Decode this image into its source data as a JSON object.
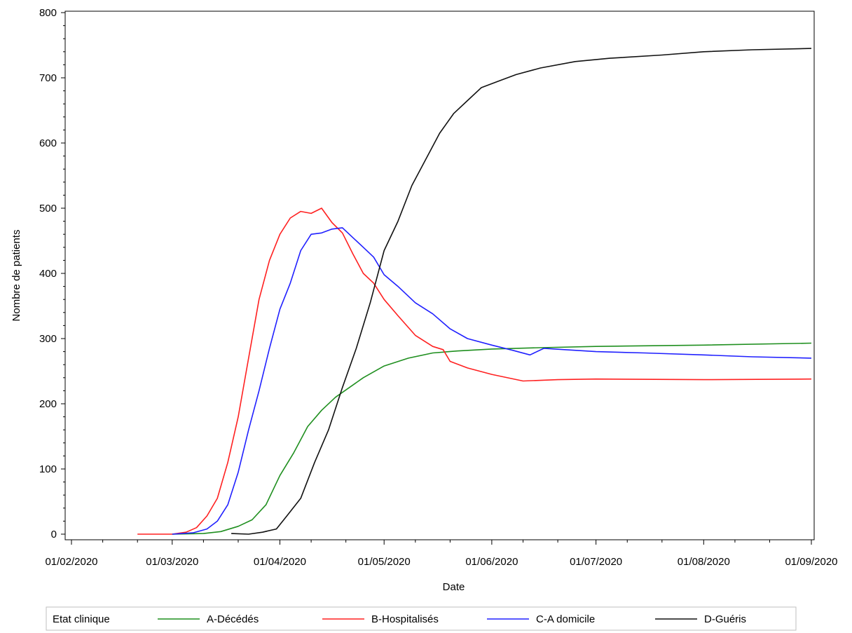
{
  "chart_data": {
    "type": "line",
    "xlabel": "Date",
    "ylabel": "Nombre de patients",
    "xlim": [
      "01/02/2020",
      "01/09/2020"
    ],
    "ylim": [
      0,
      800
    ],
    "x_ticks": [
      "01/02/2020",
      "01/03/2020",
      "01/04/2020",
      "01/05/2020",
      "01/06/2020",
      "01/07/2020",
      "01/08/2020",
      "01/09/2020"
    ],
    "y_ticks": [
      0,
      100,
      200,
      300,
      400,
      500,
      600,
      700,
      800
    ],
    "grid": false,
    "legend": {
      "title": "Etat clinique",
      "placement": "bottom"
    },
    "series": [
      {
        "name": "A-Décédés",
        "color": "#1f8f1f",
        "points": [
          [
            "01/03/2020",
            0
          ],
          [
            "10/03/2020",
            1
          ],
          [
            "15/03/2020",
            4
          ],
          [
            "20/03/2020",
            12
          ],
          [
            "24/03/2020",
            22
          ],
          [
            "28/03/2020",
            45
          ],
          [
            "01/04/2020",
            90
          ],
          [
            "05/04/2020",
            125
          ],
          [
            "09/04/2020",
            165
          ],
          [
            "13/04/2020",
            190
          ],
          [
            "17/04/2020",
            210
          ],
          [
            "21/04/2020",
            225
          ],
          [
            "25/04/2020",
            240
          ],
          [
            "01/05/2020",
            258
          ],
          [
            "08/05/2020",
            270
          ],
          [
            "15/05/2020",
            278
          ],
          [
            "22/05/2020",
            281
          ],
          [
            "01/06/2020",
            284
          ],
          [
            "15/06/2020",
            286
          ],
          [
            "01/07/2020",
            288
          ],
          [
            "01/08/2020",
            290
          ],
          [
            "01/09/2020",
            293
          ]
        ]
      },
      {
        "name": "B-Hospitalisés",
        "color": "#ff2020",
        "points": [
          [
            "20/02/2020",
            0
          ],
          [
            "01/03/2020",
            0
          ],
          [
            "05/03/2020",
            3
          ],
          [
            "08/03/2020",
            10
          ],
          [
            "11/03/2020",
            28
          ],
          [
            "14/03/2020",
            55
          ],
          [
            "17/03/2020",
            110
          ],
          [
            "20/03/2020",
            180
          ],
          [
            "23/03/2020",
            270
          ],
          [
            "26/03/2020",
            360
          ],
          [
            "29/03/2020",
            420
          ],
          [
            "01/04/2020",
            460
          ],
          [
            "04/04/2020",
            485
          ],
          [
            "07/04/2020",
            495
          ],
          [
            "10/04/2020",
            492
          ],
          [
            "13/04/2020",
            500
          ],
          [
            "16/04/2020",
            478
          ],
          [
            "19/04/2020",
            462
          ],
          [
            "22/04/2020",
            430
          ],
          [
            "25/04/2020",
            400
          ],
          [
            "28/04/2020",
            385
          ],
          [
            "01/05/2020",
            360
          ],
          [
            "05/05/2020",
            335
          ],
          [
            "10/05/2020",
            305
          ],
          [
            "15/05/2020",
            288
          ],
          [
            "18/05/2020",
            283
          ],
          [
            "20/05/2020",
            265
          ],
          [
            "25/05/2020",
            255
          ],
          [
            "01/06/2020",
            245
          ],
          [
            "10/06/2020",
            235
          ],
          [
            "20/06/2020",
            237
          ],
          [
            "01/07/2020",
            238
          ],
          [
            "01/08/2020",
            237
          ],
          [
            "01/09/2020",
            238
          ]
        ]
      },
      {
        "name": "C-A domicile",
        "color": "#2020ff",
        "points": [
          [
            "01/03/2020",
            0
          ],
          [
            "07/03/2020",
            2
          ],
          [
            "11/03/2020",
            8
          ],
          [
            "14/03/2020",
            20
          ],
          [
            "17/03/2020",
            45
          ],
          [
            "20/03/2020",
            95
          ],
          [
            "23/03/2020",
            160
          ],
          [
            "26/03/2020",
            220
          ],
          [
            "29/03/2020",
            285
          ],
          [
            "01/04/2020",
            345
          ],
          [
            "04/04/2020",
            385
          ],
          [
            "07/04/2020",
            435
          ],
          [
            "10/04/2020",
            460
          ],
          [
            "13/04/2020",
            462
          ],
          [
            "16/04/2020",
            468
          ],
          [
            "19/04/2020",
            470
          ],
          [
            "22/04/2020",
            455
          ],
          [
            "25/04/2020",
            440
          ],
          [
            "28/04/2020",
            425
          ],
          [
            "01/05/2020",
            398
          ],
          [
            "05/05/2020",
            380
          ],
          [
            "10/05/2020",
            355
          ],
          [
            "15/05/2020",
            338
          ],
          [
            "20/05/2020",
            315
          ],
          [
            "25/05/2020",
            300
          ],
          [
            "01/06/2020",
            290
          ],
          [
            "07/06/2020",
            282
          ],
          [
            "12/06/2020",
            275
          ],
          [
            "16/06/2020",
            285
          ],
          [
            "22/06/2020",
            283
          ],
          [
            "01/07/2020",
            280
          ],
          [
            "15/07/2020",
            278
          ],
          [
            "01/08/2020",
            275
          ],
          [
            "15/08/2020",
            272
          ],
          [
            "01/09/2020",
            270
          ]
        ]
      },
      {
        "name": "D-Guéris",
        "color": "#111111",
        "points": [
          [
            "18/03/2020",
            1
          ],
          [
            "23/03/2020",
            0
          ],
          [
            "27/03/2020",
            3
          ],
          [
            "31/03/2020",
            8
          ],
          [
            "03/04/2020",
            28
          ],
          [
            "07/04/2020",
            55
          ],
          [
            "11/04/2020",
            110
          ],
          [
            "15/04/2020",
            160
          ],
          [
            "19/04/2020",
            225
          ],
          [
            "23/04/2020",
            285
          ],
          [
            "27/04/2020",
            355
          ],
          [
            "01/05/2020",
            435
          ],
          [
            "05/05/2020",
            480
          ],
          [
            "09/05/2020",
            535
          ],
          [
            "13/05/2020",
            575
          ],
          [
            "17/05/2020",
            615
          ],
          [
            "21/05/2020",
            645
          ],
          [
            "25/05/2020",
            665
          ],
          [
            "29/05/2020",
            685
          ],
          [
            "03/06/2020",
            695
          ],
          [
            "08/06/2020",
            705
          ],
          [
            "15/06/2020",
            715
          ],
          [
            "25/06/2020",
            725
          ],
          [
            "05/07/2020",
            730
          ],
          [
            "20/07/2020",
            735
          ],
          [
            "01/08/2020",
            740
          ],
          [
            "15/08/2020",
            743
          ],
          [
            "01/09/2020",
            745
          ]
        ]
      }
    ]
  }
}
